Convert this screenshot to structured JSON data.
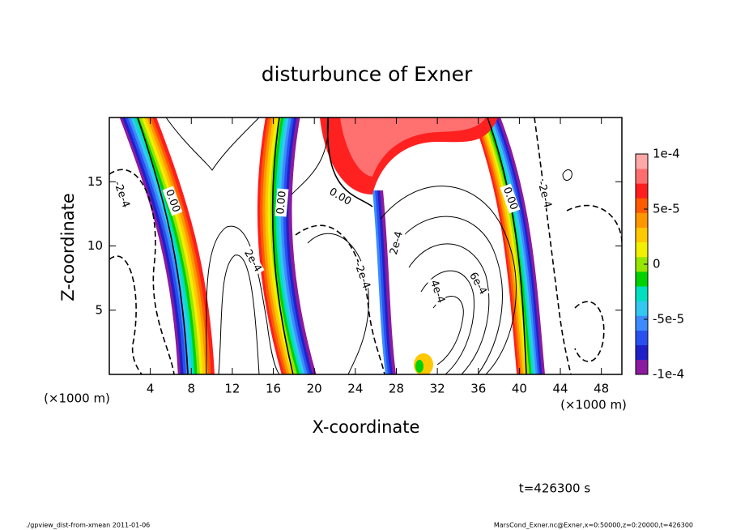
{
  "chart_data": {
    "type": "contour",
    "title": "disturbunce of Exner",
    "x_label": "X-coordinate",
    "y_label": "Z-coordinate",
    "x_unit": "(×1000 m)",
    "xlim": [
      0,
      50
    ],
    "xticks": [
      4,
      8,
      12,
      16,
      20,
      24,
      28,
      32,
      36,
      40,
      44,
      48
    ],
    "ylim": [
      0,
      20
    ],
    "yticks": [
      5,
      10,
      15
    ],
    "colorbar": {
      "lim": [
        -0.0001,
        0.0001
      ],
      "ticks": [
        {
          "value": 0.0001,
          "label": "1e-4"
        },
        {
          "value": 5e-05,
          "label": "5e-5"
        },
        0,
        {
          "value": -5e-05,
          "label": "-5e-5"
        },
        {
          "value": -0.0001,
          "label": "-1e-4"
        }
      ],
      "colors": [
        "#8c1aa0",
        "#2020c8",
        "#2850f0",
        "#3c8cff",
        "#32c8f0",
        "#00e0c0",
        "#00d200",
        "#96e600",
        "#f0f000",
        "#ffc800",
        "#ff9600",
        "#ff5a00",
        "#ff1e1e",
        "#ff6e6e",
        "#ffa8a8"
      ]
    },
    "contour_labels": [
      "-2e-4",
      "0.00",
      "0.00",
      "0.00",
      "2e-4",
      "-2e-4",
      "2e-4",
      "4e-4",
      "6e-4",
      "0.00",
      "-2e-4"
    ],
    "annotation": "t=426300 s",
    "footer_left": "./gpview_dist-from-xmean  2011-01-06",
    "footer_right": "MarsCond_Exner.nc@Exner,x=0:50000,z=0:20000,t=426300"
  }
}
